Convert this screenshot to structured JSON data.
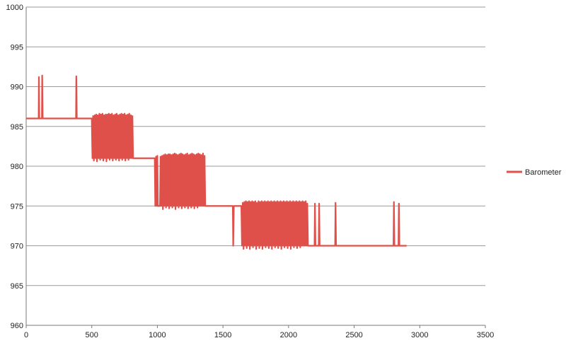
{
  "chart_data": {
    "type": "line",
    "title": "",
    "xlabel": "",
    "ylabel": "",
    "xlim": [
      0,
      3500
    ],
    "ylim": [
      960,
      1000
    ],
    "x_ticks": [
      0,
      500,
      1000,
      1500,
      2000,
      2500,
      3000,
      3500
    ],
    "y_ticks": [
      960,
      965,
      970,
      975,
      980,
      985,
      990,
      995,
      1000
    ],
    "grid": "horizontal",
    "legend_position": "right",
    "series": [
      {
        "name": "Barometer",
        "color": "#e0504a",
        "points": [
          [
            0,
            986
          ],
          [
            95,
            986
          ],
          [
            97,
            991.2
          ],
          [
            100,
            986
          ],
          [
            120,
            986
          ],
          [
            122,
            991.4
          ],
          [
            126,
            986
          ],
          [
            380,
            986
          ],
          [
            382,
            991.3
          ],
          [
            386,
            986
          ],
          [
            500,
            986
          ],
          [
            505,
            981
          ],
          [
            510,
            986.3
          ],
          [
            516,
            980.7
          ],
          [
            522,
            986.4
          ],
          [
            528,
            981
          ],
          [
            534,
            986.5
          ],
          [
            540,
            980.6
          ],
          [
            546,
            986.4
          ],
          [
            552,
            981
          ],
          [
            558,
            986.6
          ],
          [
            564,
            980.8
          ],
          [
            570,
            986.5
          ],
          [
            576,
            981
          ],
          [
            582,
            986.6
          ],
          [
            588,
            980.7
          ],
          [
            594,
            986.4
          ],
          [
            600,
            981
          ],
          [
            606,
            986.5
          ],
          [
            612,
            980.6
          ],
          [
            618,
            986.5
          ],
          [
            624,
            981
          ],
          [
            630,
            986.6
          ],
          [
            636,
            980.8
          ],
          [
            642,
            986.5
          ],
          [
            648,
            981
          ],
          [
            654,
            986.6
          ],
          [
            660,
            980.7
          ],
          [
            666,
            986.4
          ],
          [
            672,
            981
          ],
          [
            678,
            986.5
          ],
          [
            684,
            980.8
          ],
          [
            690,
            986.6
          ],
          [
            696,
            981
          ],
          [
            702,
            986.4
          ],
          [
            708,
            980.7
          ],
          [
            714,
            986.5
          ],
          [
            720,
            981
          ],
          [
            726,
            986.6
          ],
          [
            732,
            980.8
          ],
          [
            738,
            986.5
          ],
          [
            744,
            981
          ],
          [
            750,
            986.6
          ],
          [
            756,
            980.7
          ],
          [
            762,
            986.4
          ],
          [
            768,
            981
          ],
          [
            774,
            986.5
          ],
          [
            780,
            980.8
          ],
          [
            786,
            986.6
          ],
          [
            792,
            981
          ],
          [
            798,
            986.4
          ],
          [
            804,
            981
          ],
          [
            810,
            986.3
          ],
          [
            815,
            981
          ],
          [
            980,
            981
          ],
          [
            984,
            975
          ],
          [
            990,
            981.2
          ],
          [
            996,
            975
          ],
          [
            1000,
            981.3
          ],
          [
            1004,
            975
          ],
          [
            1020,
            975
          ],
          [
            1024,
            981.2
          ],
          [
            1030,
            975
          ],
          [
            1036,
            981.3
          ],
          [
            1042,
            974.6
          ],
          [
            1048,
            981.4
          ],
          [
            1054,
            975
          ],
          [
            1060,
            981.5
          ],
          [
            1066,
            974.8
          ],
          [
            1072,
            981.4
          ],
          [
            1078,
            975
          ],
          [
            1084,
            981.5
          ],
          [
            1090,
            974.7
          ],
          [
            1096,
            981.5
          ],
          [
            1102,
            975
          ],
          [
            1108,
            981.4
          ],
          [
            1114,
            974.8
          ],
          [
            1120,
            981.5
          ],
          [
            1126,
            975
          ],
          [
            1132,
            981.6
          ],
          [
            1138,
            974.6
          ],
          [
            1144,
            981.5
          ],
          [
            1150,
            975
          ],
          [
            1156,
            981.4
          ],
          [
            1162,
            974.8
          ],
          [
            1168,
            981.5
          ],
          [
            1174,
            975
          ],
          [
            1180,
            981.6
          ],
          [
            1186,
            974.7
          ],
          [
            1192,
            981.5
          ],
          [
            1198,
            975
          ],
          [
            1204,
            981.4
          ],
          [
            1210,
            974.8
          ],
          [
            1216,
            981.5
          ],
          [
            1222,
            975
          ],
          [
            1228,
            981.6
          ],
          [
            1234,
            974.7
          ],
          [
            1240,
            981.4
          ],
          [
            1246,
            975
          ],
          [
            1252,
            981.5
          ],
          [
            1258,
            974.8
          ],
          [
            1264,
            981.6
          ],
          [
            1270,
            975
          ],
          [
            1276,
            981.5
          ],
          [
            1282,
            974.7
          ],
          [
            1288,
            981.4
          ],
          [
            1294,
            975
          ],
          [
            1300,
            981.5
          ],
          [
            1306,
            974.8
          ],
          [
            1312,
            981.6
          ],
          [
            1318,
            975
          ],
          [
            1324,
            981.5
          ],
          [
            1330,
            975
          ],
          [
            1336,
            981.4
          ],
          [
            1342,
            975
          ],
          [
            1348,
            981.6
          ],
          [
            1354,
            975
          ],
          [
            1360,
            981.3
          ],
          [
            1365,
            975
          ],
          [
            1575,
            975
          ],
          [
            1578,
            970
          ],
          [
            1583,
            975
          ],
          [
            1640,
            975
          ],
          [
            1645,
            970
          ],
          [
            1651,
            975.4
          ],
          [
            1657,
            969.6
          ],
          [
            1663,
            975.5
          ],
          [
            1669,
            970
          ],
          [
            1675,
            975.6
          ],
          [
            1681,
            969.7
          ],
          [
            1687,
            975.5
          ],
          [
            1693,
            970
          ],
          [
            1699,
            975.6
          ],
          [
            1705,
            969.6
          ],
          [
            1711,
            975.5
          ],
          [
            1717,
            970
          ],
          [
            1723,
            975.6
          ],
          [
            1729,
            969.8
          ],
          [
            1735,
            975.5
          ],
          [
            1741,
            970
          ],
          [
            1747,
            975.6
          ],
          [
            1753,
            969.6
          ],
          [
            1759,
            975.4
          ],
          [
            1765,
            970
          ],
          [
            1771,
            975.6
          ],
          [
            1777,
            969.7
          ],
          [
            1783,
            975.5
          ],
          [
            1789,
            970
          ],
          [
            1795,
            975.6
          ],
          [
            1801,
            969.6
          ],
          [
            1807,
            975.5
          ],
          [
            1813,
            970
          ],
          [
            1819,
            975.6
          ],
          [
            1825,
            969.8
          ],
          [
            1831,
            975.5
          ],
          [
            1837,
            970
          ],
          [
            1843,
            975.6
          ],
          [
            1849,
            969.7
          ],
          [
            1855,
            975.5
          ],
          [
            1861,
            970
          ],
          [
            1867,
            975.6
          ],
          [
            1873,
            969.6
          ],
          [
            1879,
            975.5
          ],
          [
            1885,
            970
          ],
          [
            1891,
            975.6
          ],
          [
            1897,
            969.8
          ],
          [
            1903,
            975.5
          ],
          [
            1909,
            970
          ],
          [
            1915,
            975.6
          ],
          [
            1921,
            969.7
          ],
          [
            1927,
            975.5
          ],
          [
            1933,
            970
          ],
          [
            1939,
            975.6
          ],
          [
            1945,
            969.6
          ],
          [
            1951,
            975.5
          ],
          [
            1957,
            970
          ],
          [
            1963,
            975.6
          ],
          [
            1969,
            969.8
          ],
          [
            1975,
            975.5
          ],
          [
            1981,
            970
          ],
          [
            1987,
            975.6
          ],
          [
            1993,
            969.7
          ],
          [
            1999,
            975.5
          ],
          [
            2005,
            970
          ],
          [
            2011,
            975.6
          ],
          [
            2017,
            969.6
          ],
          [
            2023,
            975.5
          ],
          [
            2029,
            970
          ],
          [
            2035,
            975.6
          ],
          [
            2041,
            969.8
          ],
          [
            2047,
            975.5
          ],
          [
            2053,
            970
          ],
          [
            2059,
            975.6
          ],
          [
            2065,
            969.7
          ],
          [
            2071,
            975.5
          ],
          [
            2077,
            970
          ],
          [
            2083,
            975.6
          ],
          [
            2089,
            969.8
          ],
          [
            2095,
            975.5
          ],
          [
            2101,
            970
          ],
          [
            2107,
            975.6
          ],
          [
            2113,
            970
          ],
          [
            2119,
            975.5
          ],
          [
            2125,
            970
          ],
          [
            2131,
            975.6
          ],
          [
            2137,
            970
          ],
          [
            2143,
            975.3
          ],
          [
            2148,
            970
          ],
          [
            2198,
            970
          ],
          [
            2201,
            975.3
          ],
          [
            2205,
            970
          ],
          [
            2230,
            970
          ],
          [
            2233,
            975.3
          ],
          [
            2237,
            970
          ],
          [
            2355,
            970
          ],
          [
            2358,
            975.4
          ],
          [
            2362,
            970
          ],
          [
            2800,
            970
          ],
          [
            2803,
            975.5
          ],
          [
            2807,
            970
          ],
          [
            2838,
            970
          ],
          [
            2841,
            975.3
          ],
          [
            2845,
            970
          ],
          [
            2900,
            970
          ]
        ]
      }
    ]
  }
}
